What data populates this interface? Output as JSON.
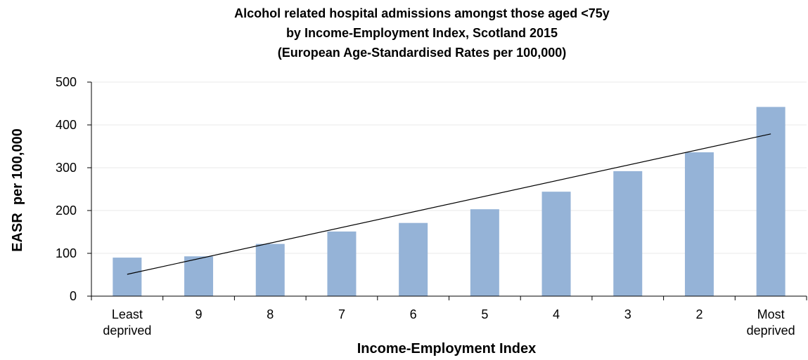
{
  "chart_data": {
    "type": "bar",
    "title": [
      "Alcohol related hospital admissions amongst those aged <75y",
      "by Income-Employment Index, Scotland 2015",
      "(European Age-Standardised Rates per 100,000)"
    ],
    "xlabel": "Income-Employment Index",
    "ylabel": "EASR  per 100,000",
    "categories": [
      [
        "Least",
        "deprived"
      ],
      [
        "9"
      ],
      [
        "8"
      ],
      [
        "7"
      ],
      [
        "6"
      ],
      [
        "5"
      ],
      [
        "4"
      ],
      [
        "3"
      ],
      [
        "2"
      ],
      [
        "Most",
        "deprived"
      ]
    ],
    "values": [
      90,
      93,
      122,
      151,
      171,
      203,
      244,
      292,
      336,
      442
    ],
    "ylim": [
      0,
      500
    ],
    "yticks": [
      0,
      100,
      200,
      300,
      400,
      500
    ],
    "trendline": {
      "type": "linear",
      "start": 51,
      "end": 379
    },
    "grid": true,
    "legend": "none",
    "colors": {
      "bar": "#95B3D7",
      "trendline": "#000000",
      "gridline": "#e8e8e8",
      "axis": "#000000"
    }
  }
}
